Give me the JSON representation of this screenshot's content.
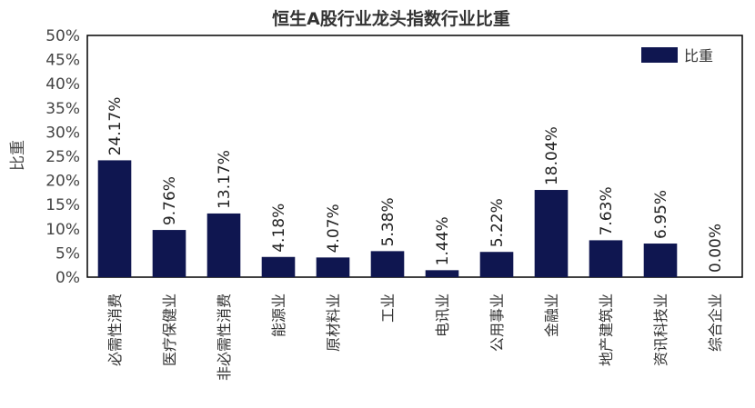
{
  "chart_data": {
    "type": "bar",
    "title": "恒生A股行业龙头指数行业比重",
    "ylabel": "比重",
    "xlabel": "",
    "ylim": [
      0,
      50
    ],
    "yticks": [
      "0%",
      "5%",
      "10%",
      "15%",
      "20%",
      "25%",
      "30%",
      "35%",
      "40%",
      "45%",
      "50%"
    ],
    "categories": [
      "必需性消费",
      "医疗保健业",
      "非必需性消费",
      "能源业",
      "原材料业",
      "工业",
      "电讯业",
      "公用事业",
      "金融业",
      "地产建筑业",
      "资讯科技业",
      "综合企业"
    ],
    "series": [
      {
        "name": "比重",
        "values": [
          24.17,
          9.76,
          13.17,
          4.18,
          4.07,
          5.38,
          1.44,
          5.22,
          18.04,
          7.63,
          6.95,
          0.0
        ],
        "labels": [
          "24.17%",
          "9.76%",
          "13.17%",
          "4.18%",
          "4.07%",
          "5.38%",
          "1.44%",
          "5.22%",
          "18.04%",
          "7.63%",
          "6.95%",
          "0.00%"
        ]
      }
    ],
    "legend_position": "top-right",
    "grid": false,
    "bar_color": "#0f1650"
  }
}
